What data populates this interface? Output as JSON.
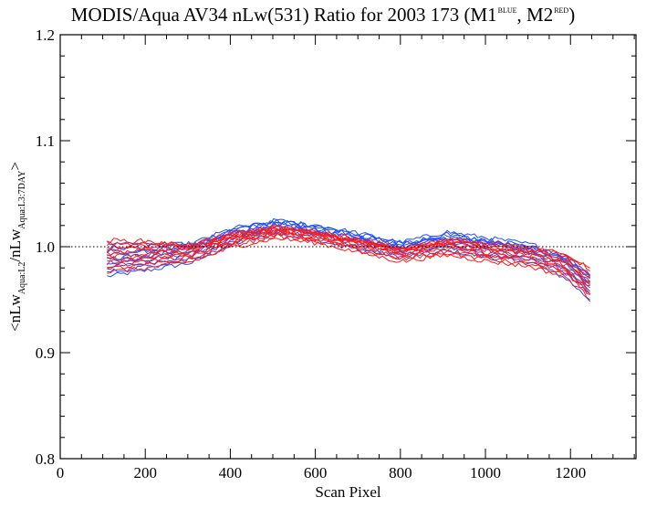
{
  "title": {
    "main": "MODIS/Aqua AV34 nLw(531) Ratio for 2003 173 (M1",
    "sup1": "BLUE",
    "middle": ", M2",
    "sup2": "RED",
    "end": ")"
  },
  "chart_data": {
    "type": "line",
    "xlabel": "Scan Pixel",
    "ylabel": {
      "lead": "<nLw",
      "sub1": "Aqua:L2",
      "mid": "/nLw",
      "sub2": "Aqua:L3:7DAY",
      "trail": ">"
    },
    "xlim": [
      0,
      1354
    ],
    "ylim": [
      0.8,
      1.2
    ],
    "xticks": [
      0,
      200,
      400,
      600,
      800,
      1000,
      1200
    ],
    "xtick_labels": [
      "0",
      "200",
      "400",
      "600",
      "800",
      "1000",
      "1200"
    ],
    "yticks": [
      0.8,
      0.9,
      1.0,
      1.1,
      1.2
    ],
    "ytick_labels": [
      "0.8",
      "0.9",
      "1.0",
      "1.1",
      "1.2"
    ],
    "reference_line": {
      "y": 1.0,
      "style": "dotted"
    },
    "series_colors": {
      "M1": "#1f4fff",
      "M2": "#ff1a1a"
    },
    "x": [
      110,
      210,
      310,
      410,
      510,
      610,
      710,
      800,
      910,
      1010,
      1110,
      1190,
      1250
    ],
    "series": [
      {
        "group": "M1",
        "values": [
          0.972,
          0.978,
          0.985,
          1.003,
          1.012,
          1.006,
          0.997,
          0.99,
          0.996,
          0.99,
          0.985,
          0.97,
          0.948
        ]
      },
      {
        "group": "M1",
        "values": [
          0.98,
          0.985,
          0.992,
          1.008,
          1.018,
          1.012,
          1.003,
          0.995,
          1.002,
          0.996,
          0.99,
          0.978,
          0.958
        ]
      },
      {
        "group": "M1",
        "values": [
          0.986,
          0.99,
          0.997,
          1.013,
          1.022,
          1.015,
          1.007,
          0.999,
          1.007,
          1.001,
          0.995,
          0.983,
          0.964
        ]
      },
      {
        "group": "M1",
        "values": [
          0.992,
          0.995,
          1.0,
          1.016,
          1.025,
          1.019,
          1.01,
          1.002,
          1.011,
          1.005,
          0.999,
          0.987,
          0.969
        ]
      },
      {
        "group": "M1",
        "values": [
          0.998,
          1.0,
          1.003,
          1.018,
          1.023,
          1.02,
          1.012,
          1.004,
          1.014,
          1.008,
          1.002,
          0.991,
          0.973
        ]
      },
      {
        "group": "M1",
        "values": [
          1.004,
          1.003,
          1.001,
          1.012,
          1.016,
          1.013,
          1.006,
          1.0,
          1.008,
          1.003,
          0.998,
          0.988,
          0.97
        ]
      },
      {
        "group": "M1",
        "values": [
          0.976,
          0.982,
          0.989,
          1.005,
          1.014,
          1.009,
          1.0,
          0.993,
          1.0,
          0.993,
          0.988,
          0.975,
          0.955
        ]
      },
      {
        "group": "M1",
        "values": [
          0.983,
          0.988,
          0.994,
          1.01,
          1.02,
          1.013,
          1.005,
          0.997,
          1.004,
          0.998,
          0.993,
          0.981,
          0.962
        ]
      },
      {
        "group": "M1",
        "values": [
          0.995,
          0.997,
          1.002,
          1.017,
          1.024,
          1.018,
          1.011,
          1.003,
          1.012,
          1.006,
          1.0,
          0.989,
          0.971
        ]
      },
      {
        "group": "M1",
        "values": [
          0.989,
          0.992,
          0.998,
          1.014,
          1.021,
          1.016,
          1.008,
          1.0,
          1.009,
          1.003,
          0.997,
          0.985,
          0.966
        ]
      },
      {
        "group": "M2",
        "values": [
          0.976,
          0.98,
          0.986,
          1.0,
          1.008,
          1.003,
          0.994,
          0.986,
          0.992,
          0.986,
          0.981,
          0.971,
          0.95
        ]
      },
      {
        "group": "M2",
        "values": [
          0.982,
          0.986,
          0.991,
          1.004,
          1.012,
          1.007,
          0.998,
          0.99,
          0.996,
          0.99,
          0.985,
          0.976,
          0.956
        ]
      },
      {
        "group": "M2",
        "values": [
          0.988,
          0.991,
          0.995,
          1.007,
          1.015,
          1.01,
          1.001,
          0.993,
          1.0,
          0.994,
          0.989,
          0.98,
          0.961
        ]
      },
      {
        "group": "M2",
        "values": [
          0.994,
          0.996,
          0.998,
          1.01,
          1.017,
          1.012,
          1.004,
          0.996,
          1.003,
          0.998,
          0.993,
          0.985,
          0.967
        ]
      },
      {
        "group": "M2",
        "values": [
          1.0,
          1.001,
          1.001,
          1.012,
          1.018,
          1.013,
          1.006,
          0.998,
          1.006,
          1.001,
          0.996,
          0.989,
          0.972
        ]
      },
      {
        "group": "M2",
        "values": [
          1.006,
          1.005,
          1.0,
          1.008,
          1.014,
          1.01,
          1.004,
          0.997,
          1.005,
          1.001,
          0.997,
          0.992,
          0.978
        ]
      },
      {
        "group": "M2",
        "values": [
          0.979,
          0.983,
          0.988,
          1.002,
          1.01,
          1.005,
          0.996,
          0.988,
          0.994,
          0.988,
          0.983,
          0.973,
          0.953
        ]
      },
      {
        "group": "M2",
        "values": [
          0.985,
          0.988,
          0.993,
          1.005,
          1.013,
          1.008,
          1.0,
          0.992,
          0.998,
          0.992,
          0.987,
          0.978,
          0.958
        ]
      },
      {
        "group": "M2",
        "values": [
          0.991,
          0.993,
          0.997,
          1.009,
          1.016,
          1.011,
          1.003,
          0.995,
          1.002,
          0.996,
          0.991,
          0.983,
          0.964
        ]
      },
      {
        "group": "M2",
        "values": [
          0.997,
          0.998,
          1.0,
          1.011,
          1.017,
          1.012,
          1.005,
          0.997,
          1.004,
          0.999,
          0.995,
          0.987,
          0.97
        ]
      },
      {
        "group": "M2",
        "values": [
          1.003,
          1.003,
          1.002,
          1.013,
          1.019,
          1.014,
          1.007,
          0.999,
          1.007,
          1.003,
          0.999,
          0.993,
          0.98
        ]
      }
    ]
  }
}
